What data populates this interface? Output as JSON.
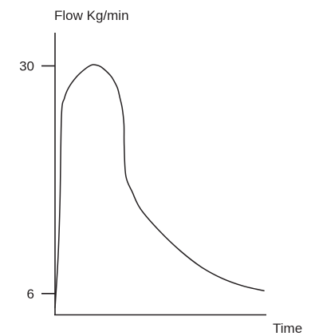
{
  "chart_data": {
    "type": "line",
    "title": "",
    "ylabel": "Flow Kg/min",
    "xlabel": "Time",
    "y_ticks": [
      {
        "value": 30,
        "label": "30"
      },
      {
        "value": 6,
        "label": "6"
      }
    ],
    "ylim": [
      3.8,
      33.5
    ],
    "xlim": [
      0,
      100
    ],
    "grid": false,
    "legend": "none",
    "line_color": "#231f20",
    "axis_color": "#231f20",
    "series": [
      {
        "x": [
          0,
          1.5,
          2.4,
          3.1,
          4.5,
          6.5,
          10.5,
          14.5,
          17.5,
          19.5,
          22,
          26.5,
          28.5,
          30,
          31.1,
          32.2,
          33,
          33.1,
          33.9,
          37,
          41,
          50,
          60,
          70,
          80,
          90,
          100
        ],
        "y": [
          4.5,
          10,
          16,
          24.8,
          26.6,
          27.7,
          28.9,
          29.7,
          30.1,
          30.1,
          29.9,
          29.0,
          28.3,
          27.6,
          26.6,
          25.5,
          23.8,
          21.6,
          18.4,
          16.7,
          14.9,
          12.6,
          10.5,
          8.8,
          7.6,
          6.8,
          6.3
        ]
      }
    ]
  }
}
